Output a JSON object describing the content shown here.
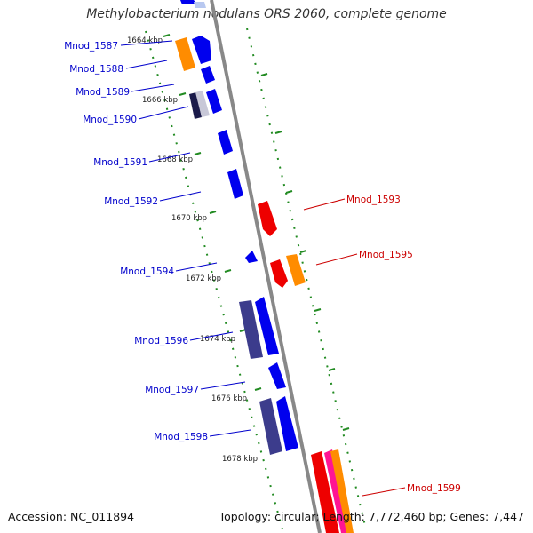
{
  "title": "Methylobacterium nodulans ORS 2060, complete genome",
  "footer": {
    "accession": "Accession: NC_011894",
    "summary": "Topology: circular; Length: 7,772,460 bp; Genes: 7,447"
  },
  "colors": {
    "forward_cds": "#0000ee",
    "reverse_cds": "#ee0000",
    "pseudo_or_other": "#ff8c00",
    "dark_gene": "#3c3c8c",
    "tick": "#228b22",
    "backbone": "#888888"
  },
  "kbp_ticks": [
    "1664 kbp",
    "1666 kbp",
    "1668 kbp",
    "1670 kbp",
    "1672 kbp",
    "1674 kbp",
    "1676 kbp",
    "1678 kbp"
  ],
  "gene_labels": {
    "left": [
      "Mnod_1587",
      "Mnod_1588",
      "Mnod_1589",
      "Mnod_1590",
      "Mnod_1591",
      "Mnod_1592",
      "Mnod_1594",
      "Mnod_1596",
      "Mnod_1597",
      "Mnod_1598"
    ],
    "right": [
      "Mnod_1593",
      "Mnod_1595",
      "Mnod_1599"
    ]
  }
}
